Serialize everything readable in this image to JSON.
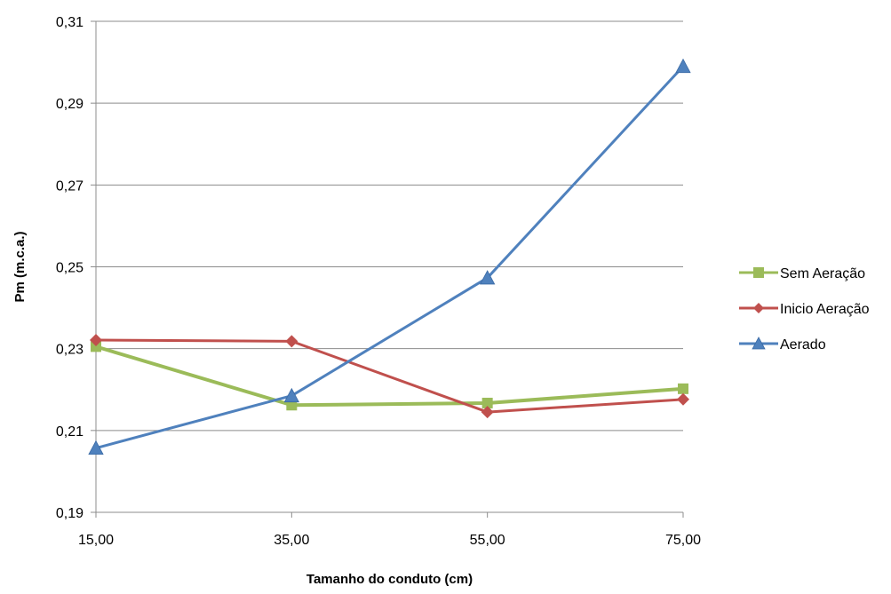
{
  "chart_data": {
    "type": "line",
    "xlabel": "Tamanho do conduto (cm)",
    "ylabel": "Pm (m.c.a.)",
    "x": [
      15,
      35,
      55,
      75
    ],
    "x_tick_labels": [
      "15,00",
      "35,00",
      "55,00",
      "75,00"
    ],
    "ylim": [
      0.19,
      0.31
    ],
    "y_ticks": [
      0.19,
      0.21,
      0.23,
      0.25,
      0.27,
      0.29,
      0.31
    ],
    "y_tick_labels": [
      "0,19",
      "0,21",
      "0,23",
      "0,25",
      "0,27",
      "0,29",
      "0,31"
    ],
    "grid": "horizontal",
    "legend_position": "right",
    "series": [
      {
        "name": "Sem Aeração",
        "values": [
          0.2305,
          0.2162,
          0.2167,
          0.2202
        ],
        "color": "#9BBB59",
        "marker": "square"
      },
      {
        "name": "Inicio Aeração",
        "values": [
          0.2321,
          0.2318,
          0.2145,
          0.2176
        ],
        "color": "#C0504D",
        "marker": "diamond"
      },
      {
        "name": "Aerado",
        "values": [
          0.2057,
          0.2185,
          0.2473,
          0.299
        ],
        "color": "#4F81BD",
        "marker": "triangle"
      }
    ]
  }
}
